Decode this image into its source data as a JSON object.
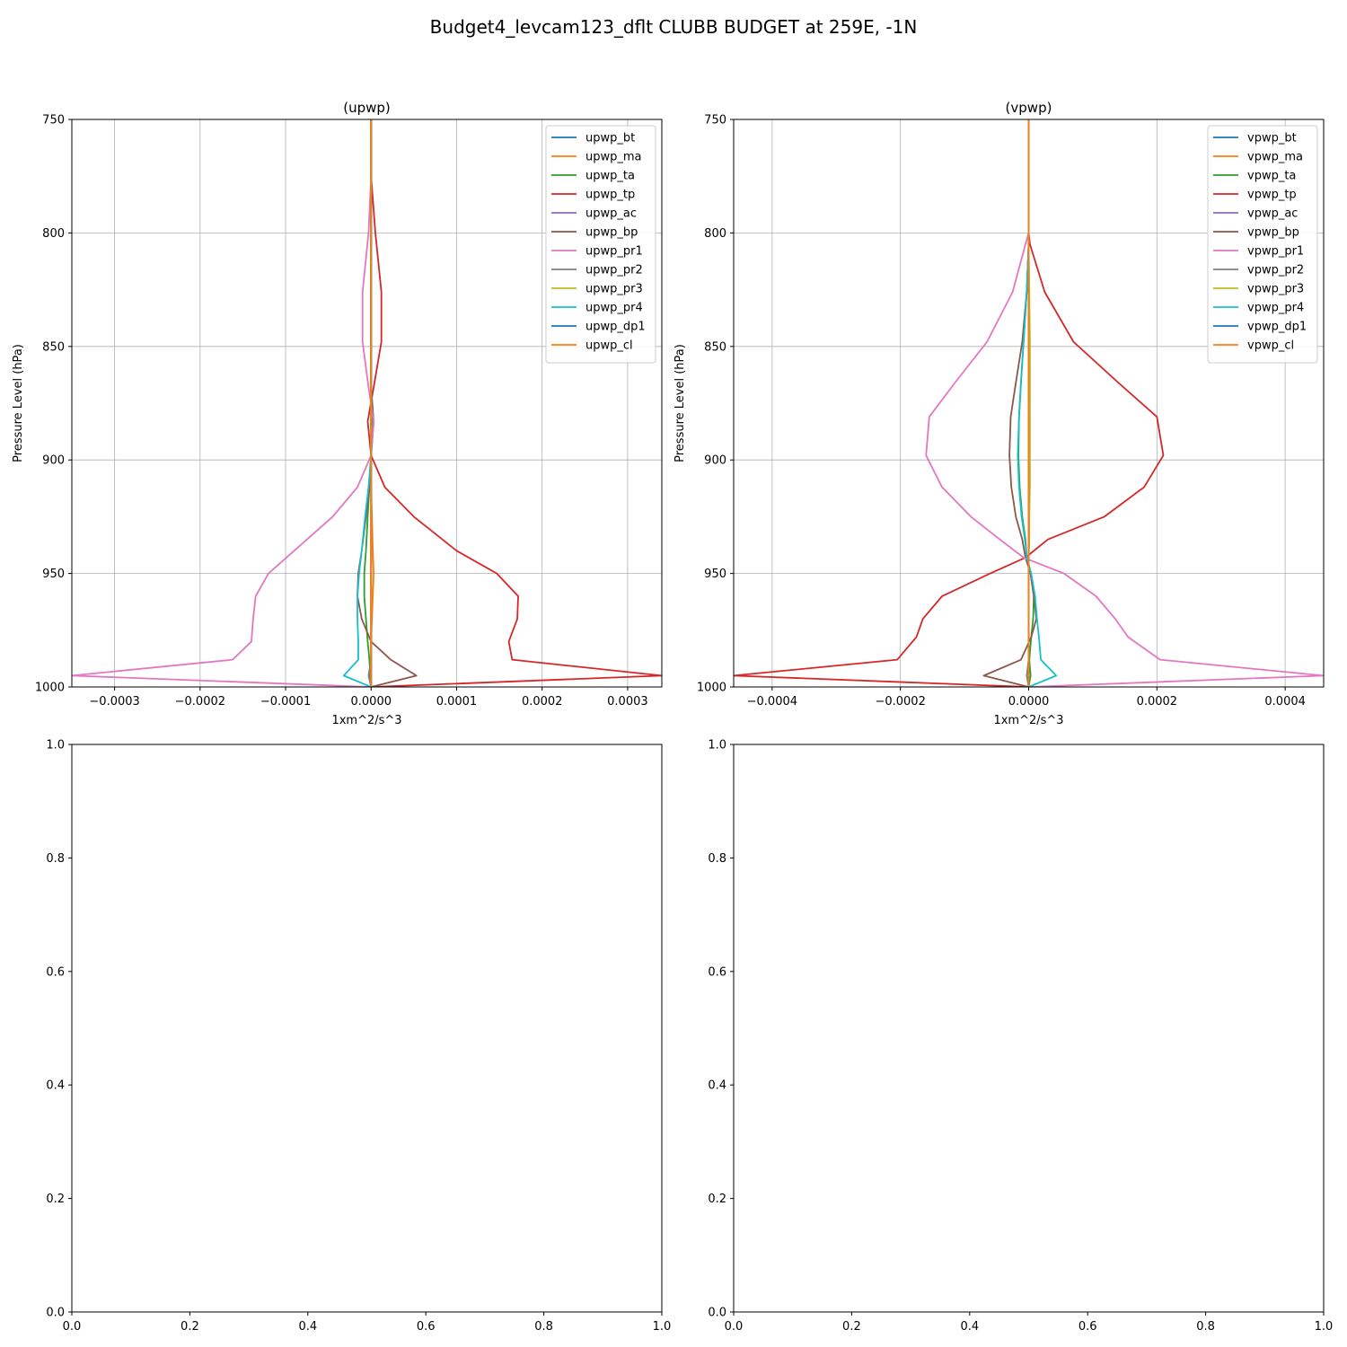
{
  "figure": {
    "title": "Budget4_levcam123_dflt CLUBB BUDGET at 259E, -1N"
  },
  "chart_data": [
    {
      "type": "line",
      "title": "(upwp)",
      "xlabel": "1xm^2/s^3",
      "ylabel": "Pressure Level (hPa)",
      "xlim": [
        -0.00035,
        0.00034
      ],
      "ylim": [
        1000,
        750
      ],
      "y_inverted": true,
      "grid": true,
      "legend_position": "top-right",
      "xticks": [
        -0.0003,
        -0.0002,
        -0.0001,
        0,
        0.0001,
        0.0002,
        0.0003
      ],
      "xtick_labels": [
        "−0.0003",
        "−0.0002",
        "−0.0001",
        "0.0000",
        "0.0001",
        "0.0002",
        "0.0003"
      ],
      "yticks": [
        750,
        800,
        850,
        900,
        950,
        1000
      ],
      "ytick_labels": [
        "750",
        "800",
        "850",
        "900",
        "950",
        "1000"
      ],
      "levels": [
        750,
        775,
        800,
        826,
        848,
        868,
        883,
        898,
        912,
        925,
        940,
        950,
        960,
        970,
        980,
        988,
        995,
        1000
      ],
      "series": [
        {
          "name": "upwp_bt",
          "color": "#1f77b4",
          "values": [
            0,
            0,
            0,
            0,
            0,
            0,
            0,
            0,
            0,
            0,
            0,
            0,
            0,
            0,
            0,
            0,
            0,
            0
          ]
        },
        {
          "name": "upwp_ma",
          "color": "#ff7f0e",
          "values": [
            0,
            0,
            0,
            0,
            0,
            0,
            0,
            0,
            0,
            1e-06,
            2e-06,
            3e-06,
            2e-06,
            1e-06,
            0,
            0,
            -1e-06,
            0
          ]
        },
        {
          "name": "upwp_ta",
          "color": "#2ca02c",
          "values": [
            0,
            0,
            0,
            0,
            0,
            0,
            1e-06,
            0,
            -2e-06,
            -4e-06,
            -6e-06,
            -8e-06,
            -8e-06,
            -6e-06,
            -4e-06,
            -2e-06,
            -1e-06,
            0
          ]
        },
        {
          "name": "upwp_tp",
          "color": "#d62728",
          "values": [
            0,
            0,
            5e-06,
            1.2e-05,
            1.2e-05,
            3e-06,
            -4e-06,
            0,
            1.6e-05,
            5e-05,
            0.0001,
            0.000147,
            0.000172,
            0.000171,
            0.000161,
            0.000165,
            0.00034,
            0
          ]
        },
        {
          "name": "upwp_ac",
          "color": "#9467bd",
          "values": [
            0,
            0,
            0,
            0,
            0,
            0,
            0,
            0,
            0,
            0,
            0,
            0,
            0,
            0,
            0,
            0,
            0,
            0
          ]
        },
        {
          "name": "upwp_bp",
          "color": "#8c564b",
          "values": [
            0,
            0,
            0,
            0,
            0,
            0,
            3e-06,
            0,
            -2e-06,
            -6e-06,
            -1.1e-05,
            -1.5e-05,
            -1.6e-05,
            -1.1e-05,
            0,
            2.3e-05,
            5.3e-05,
            0
          ]
        },
        {
          "name": "upwp_pr1",
          "color": "#e377c2",
          "values": [
            0,
            0,
            -3e-06,
            -1e-05,
            -1e-05,
            -3e-06,
            3e-06,
            0,
            -1.6e-05,
            -4.5e-05,
            -9e-05,
            -0.00012,
            -0.000135,
            -0.000138,
            -0.00014,
            -0.000162,
            -0.00035,
            0
          ]
        },
        {
          "name": "upwp_pr2",
          "color": "#7f7f7f",
          "values": [
            0,
            0,
            0,
            0,
            0,
            0,
            0,
            0,
            0,
            0,
            0,
            0,
            0,
            0,
            0,
            0,
            -3e-06,
            0
          ]
        },
        {
          "name": "upwp_pr3",
          "color": "#bcbd22",
          "values": [
            0,
            0,
            0,
            0,
            0,
            0,
            0,
            0,
            0,
            0,
            0,
            0,
            0,
            0,
            0,
            0,
            0,
            0
          ]
        },
        {
          "name": "upwp_pr4",
          "color": "#17becf",
          "values": [
            0,
            0,
            0,
            0,
            0,
            0,
            0,
            0,
            -3e-06,
            -7e-06,
            -1.1e-05,
            -1.4e-05,
            -1.6e-05,
            -1.6e-05,
            -1.5e-05,
            -1.5e-05,
            -3.2e-05,
            0
          ]
        },
        {
          "name": "upwp_dp1",
          "color": "#1f77b4",
          "values": [
            0,
            0,
            0,
            0,
            0,
            0,
            0,
            0,
            0,
            0,
            0,
            0,
            0,
            0,
            0,
            0,
            0,
            0
          ]
        },
        {
          "name": "upwp_cl",
          "color": "#ff7f0e",
          "values": [
            0,
            0,
            0,
            0,
            0,
            0,
            0,
            0,
            0,
            0,
            0,
            0,
            0,
            0,
            0,
            0,
            0,
            0
          ]
        }
      ]
    },
    {
      "type": "line",
      "title": "(vpwp)",
      "xlabel": "1xm^2/s^3",
      "ylabel": "Pressure Level (hPa)",
      "xlim": [
        -0.00046,
        0.00046
      ],
      "ylim": [
        1000,
        750
      ],
      "y_inverted": true,
      "grid": true,
      "legend_position": "top-right",
      "xticks": [
        -0.0004,
        -0.0002,
        0,
        0.0002,
        0.0004
      ],
      "xtick_labels": [
        "−0.0004",
        "−0.0002",
        "0.0000",
        "0.0002",
        "0.0004"
      ],
      "yticks": [
        750,
        800,
        850,
        900,
        950,
        1000
      ],
      "ytick_labels": [
        "750",
        "800",
        "850",
        "900",
        "950",
        "1000"
      ],
      "levels": [
        750,
        775,
        800,
        805,
        826,
        848,
        866,
        881,
        898,
        912,
        925,
        935,
        943,
        950,
        960,
        970,
        978,
        988,
        995,
        1000
      ],
      "series": [
        {
          "name": "vpwp_bt",
          "color": "#1f77b4",
          "values": [
            0,
            0,
            0,
            0,
            0,
            0,
            0,
            0,
            0,
            0,
            0,
            0,
            0,
            0,
            0,
            0,
            0,
            0,
            0,
            0
          ]
        },
        {
          "name": "vpwp_ma",
          "color": "#ff7f0e",
          "values": [
            0,
            0,
            0,
            0,
            0,
            0,
            0,
            0,
            0,
            0,
            0,
            0,
            0,
            0,
            0,
            0,
            0,
            0,
            0,
            0
          ]
        },
        {
          "name": "vpwp_ta",
          "color": "#2ca02c",
          "values": [
            0,
            0,
            0,
            0,
            -3e-06,
            -8e-06,
            -1.2e-05,
            -1.5e-05,
            -1.6e-05,
            -1.4e-05,
            -1e-05,
            -5e-06,
            -3e-06,
            3e-06,
            8e-06,
            7e-06,
            4e-06,
            1e-06,
            3e-06,
            0
          ]
        },
        {
          "name": "vpwp_tp",
          "color": "#d62728",
          "values": [
            0,
            0,
            0,
            2e-06,
            2.5e-05,
            7e-05,
            0.00014,
            0.0002,
            0.00021,
            0.00018,
            0.000118,
            3e-05,
            -5e-06,
            -6e-05,
            -0.000135,
            -0.000165,
            -0.000175,
            -0.000205,
            -0.00046,
            0
          ]
        },
        {
          "name": "vpwp_ac",
          "color": "#9467bd",
          "values": [
            0,
            0,
            0,
            0,
            0,
            0,
            0,
            0,
            0,
            0,
            0,
            0,
            0,
            0,
            0,
            0,
            0,
            0,
            0,
            0
          ]
        },
        {
          "name": "vpwp_bp",
          "color": "#8c564b",
          "values": [
            0,
            0,
            0,
            0,
            -3e-06,
            -1e-05,
            -2e-05,
            -2.8e-05,
            -3e-05,
            -2.7e-05,
            -2e-05,
            -1e-05,
            -5e-06,
            3e-06,
            8e-06,
            1.2e-05,
            4e-06,
            -1.2e-05,
            -7e-05,
            0
          ]
        },
        {
          "name": "vpwp_pr1",
          "color": "#e377c2",
          "values": [
            0,
            0,
            0,
            -5e-06,
            -2.5e-05,
            -6.5e-05,
            -0.000115,
            -0.000155,
            -0.00016,
            -0.000135,
            -9e-05,
            -4.5e-05,
            -8e-06,
            5.5e-05,
            0.000105,
            0.000135,
            0.000155,
            0.000205,
            0.00046,
            0
          ]
        },
        {
          "name": "vpwp_pr2",
          "color": "#7f7f7f",
          "values": [
            0,
            0,
            0,
            0,
            0,
            0,
            0,
            0,
            0,
            0,
            0,
            0,
            0,
            0,
            0,
            0,
            0,
            0,
            -3e-06,
            0
          ]
        },
        {
          "name": "vpwp_pr3",
          "color": "#bcbd22",
          "values": [
            0,
            0,
            0,
            0,
            1e-06,
            2e-06,
            2e-06,
            2e-06,
            2e-06,
            2e-06,
            1e-06,
            1e-06,
            0,
            0,
            0,
            0,
            0,
            0,
            0,
            0
          ]
        },
        {
          "name": "vpwp_pr4",
          "color": "#17becf",
          "values": [
            0,
            0,
            0,
            0,
            -3e-06,
            -8e-06,
            -1.2e-05,
            -1.5e-05,
            -1.7e-05,
            -1.5e-05,
            -1.1e-05,
            -6e-06,
            -3e-06,
            4e-06,
            1e-05,
            1.3e-05,
            1.6e-05,
            1.9e-05,
            4.3e-05,
            0
          ]
        },
        {
          "name": "vpwp_dp1",
          "color": "#1f77b4",
          "values": [
            0,
            0,
            0,
            0,
            0,
            0,
            0,
            0,
            0,
            0,
            0,
            0,
            0,
            0,
            0,
            0,
            0,
            0,
            0,
            0
          ]
        },
        {
          "name": "vpwp_cl",
          "color": "#ff7f0e",
          "values": [
            0,
            0,
            0,
            0,
            0,
            0,
            0,
            0,
            0,
            0,
            0,
            0,
            0,
            0,
            0,
            0,
            0,
            0,
            0,
            0
          ]
        }
      ]
    },
    {
      "type": "line",
      "title": "",
      "xlim": [
        0,
        1
      ],
      "ylim": [
        0,
        1
      ],
      "grid": false,
      "xticks": [
        0,
        0.2,
        0.4,
        0.6,
        0.8,
        1.0
      ],
      "xtick_labels": [
        "0.0",
        "0.2",
        "0.4",
        "0.6",
        "0.8",
        "1.0"
      ],
      "yticks": [
        0,
        0.2,
        0.4,
        0.6,
        0.8,
        1.0
      ],
      "ytick_labels": [
        "0.0",
        "0.2",
        "0.4",
        "0.6",
        "0.8",
        "1.0"
      ],
      "series": []
    },
    {
      "type": "line",
      "title": "",
      "xlim": [
        0,
        1
      ],
      "ylim": [
        0,
        1
      ],
      "grid": false,
      "xticks": [
        0,
        0.2,
        0.4,
        0.6,
        0.8,
        1.0
      ],
      "xtick_labels": [
        "0.0",
        "0.2",
        "0.4",
        "0.6",
        "0.8",
        "1.0"
      ],
      "yticks": [
        0,
        0.2,
        0.4,
        0.6,
        0.8,
        1.0
      ],
      "ytick_labels": [
        "0.0",
        "0.2",
        "0.4",
        "0.6",
        "0.8",
        "1.0"
      ],
      "series": []
    }
  ]
}
